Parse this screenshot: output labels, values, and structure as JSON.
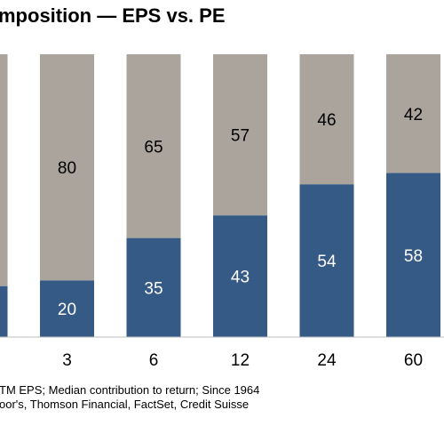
{
  "title": "mposition — EPS vs. PE",
  "notes": [
    "TM EPS; Median contribution to return; Since 1964",
    "oor's, Thomson Financial, FactSet, Credit Suisse"
  ],
  "colors": {
    "eps": "#345a85",
    "pe": "#aaa49d",
    "eps_text": "#ffffff",
    "pe_text": "#000000"
  },
  "chart_data": {
    "type": "bar",
    "stacked": true,
    "percent_stacked": true,
    "categories": [
      "",
      "3",
      "6",
      "12",
      "24",
      "60"
    ],
    "series": [
      {
        "name": "",
        "values": [
          null,
          20,
          35,
          43,
          54,
          58
        ],
        "labels": [
          "",
          "20",
          "35",
          "43",
          "54",
          "58"
        ]
      },
      {
        "name": "",
        "values": [
          null,
          80,
          65,
          57,
          46,
          42
        ],
        "labels": [
          "",
          "80",
          "65",
          "57",
          "46",
          "42"
        ]
      }
    ],
    "ylim": [
      0,
      100
    ],
    "grid": false
  }
}
